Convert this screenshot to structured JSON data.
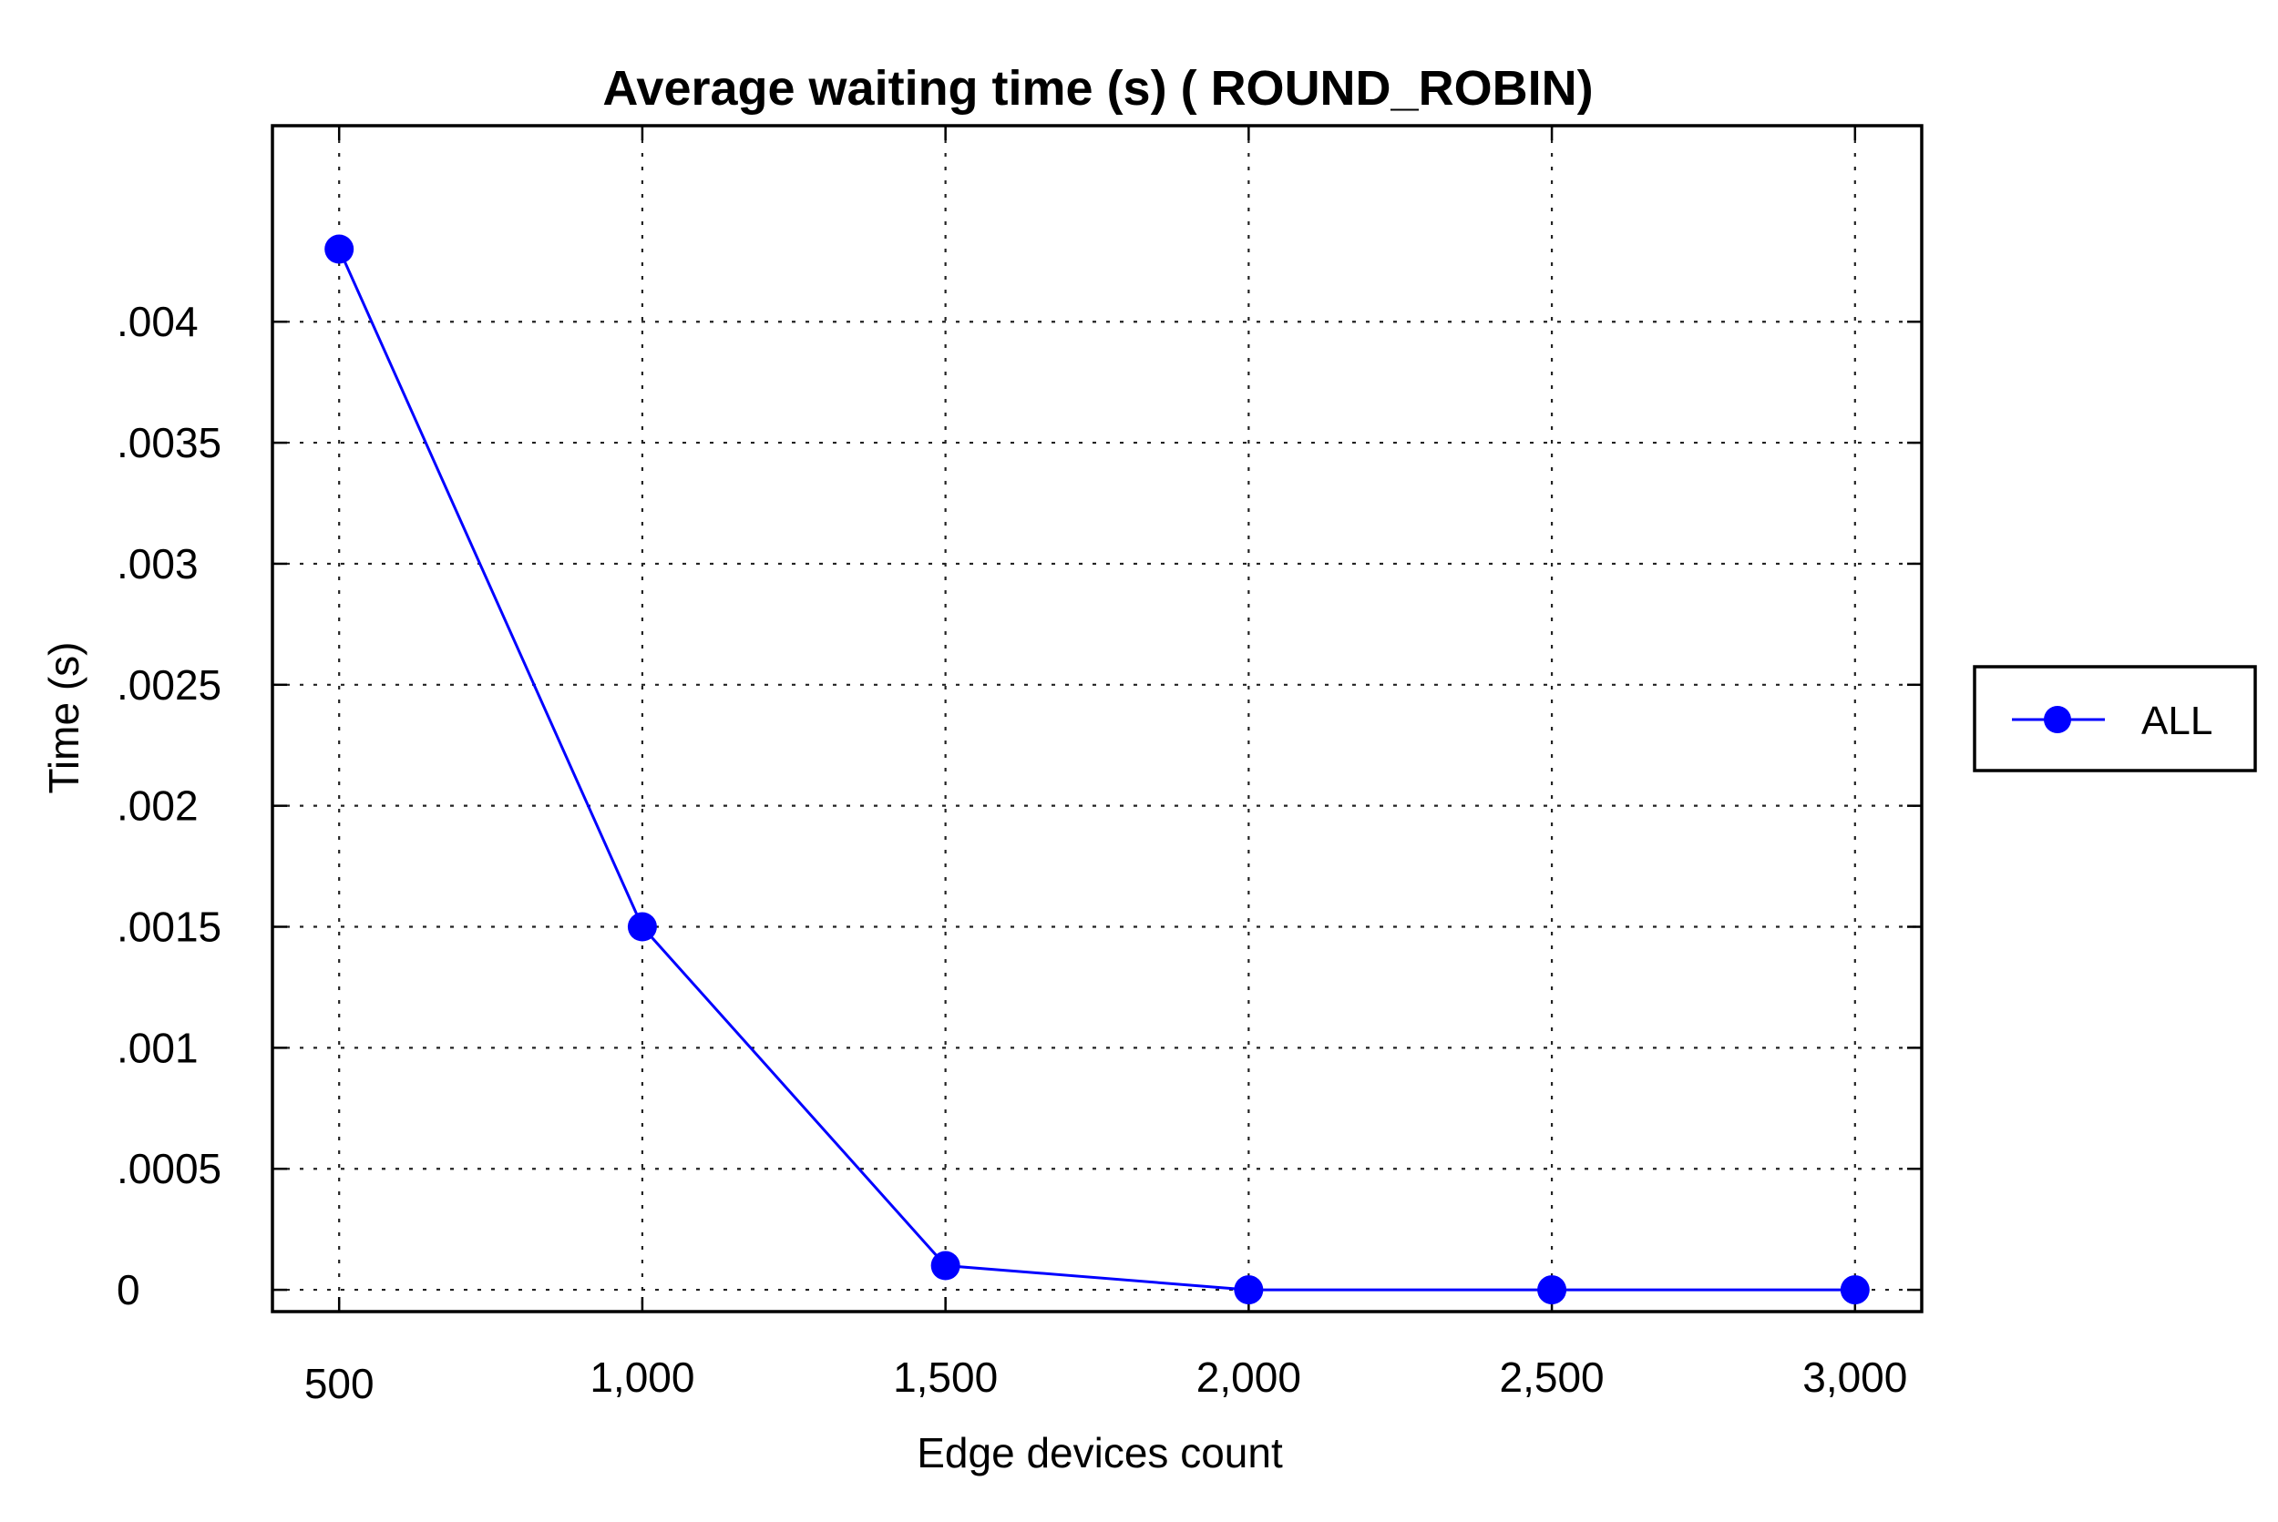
{
  "chart_data": {
    "type": "line",
    "title": "Average waiting time (s) ( ROUND_ROBIN)",
    "xlabel": "Edge devices count",
    "ylabel": "Time (s)",
    "x": [
      500,
      1000,
      1500,
      2000,
      2500,
      3000
    ],
    "x_tick_labels": [
      "500",
      "1,000",
      "1,500",
      "2,000",
      "2,500",
      "3,000"
    ],
    "y_ticks": [
      0,
      0.0005,
      0.001,
      0.0015,
      0.002,
      0.0025,
      0.003,
      0.0035,
      0.004
    ],
    "y_tick_labels": [
      "0",
      ".0005",
      ".001",
      ".0015",
      ".002",
      ".0025",
      ".003",
      ".0035",
      ".004"
    ],
    "xlim": [
      390,
      3110
    ],
    "ylim": [
      -9e-05,
      0.00481
    ],
    "grid": true,
    "legend_position": "right",
    "series": [
      {
        "name": "ALL",
        "color": "#0000ff",
        "marker": "circle",
        "values": [
          0.0043,
          0.0015,
          0.0001,
          0,
          0,
          0
        ]
      }
    ]
  }
}
